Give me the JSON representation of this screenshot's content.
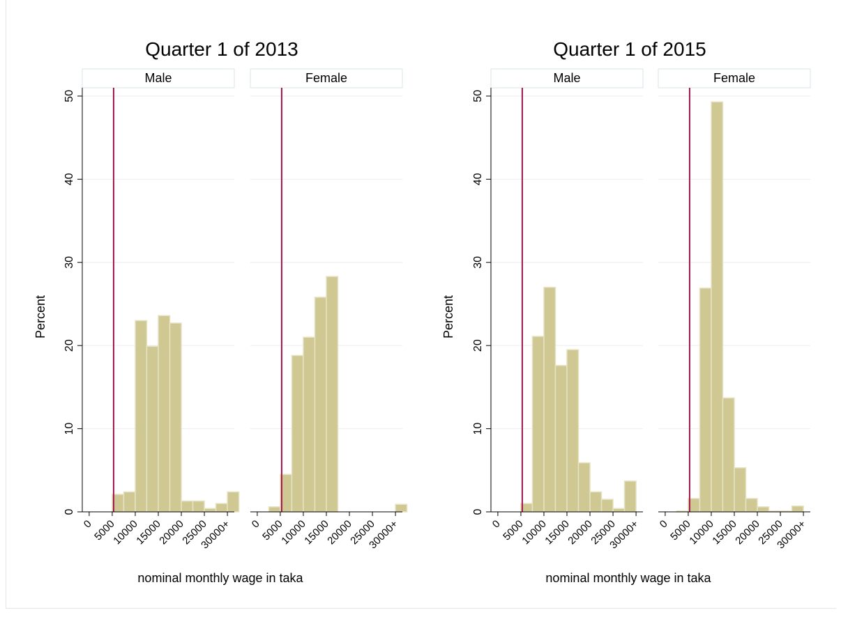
{
  "figure": {
    "panels": [
      {
        "title": "Quarter 1 of 2013",
        "xlabel": "nominal monthly wage in taka",
        "ylabel": "Percent",
        "facets": [
          {
            "label": "Male"
          },
          {
            "label": "Female"
          }
        ]
      },
      {
        "title": "Quarter 1 of 2015",
        "xlabel": "nominal monthly wage in taka",
        "ylabel": "Percent",
        "facets": [
          {
            "label": "Male"
          },
          {
            "label": "Female"
          }
        ]
      }
    ]
  },
  "chart_data": [
    {
      "type": "bar",
      "title": "Quarter 1 of 2013",
      "subtitle": "Male",
      "xlabel": "nominal monthly wage in taka",
      "ylabel": "Percent",
      "x_tick_labels": [
        "0",
        "5000",
        "10000",
        "15000",
        "20000",
        "25000",
        "30000+"
      ],
      "x_tick_values": [
        0,
        5000,
        10000,
        15000,
        20000,
        25000,
        30000
      ],
      "y_ticks": [
        0,
        10,
        20,
        30,
        40,
        50
      ],
      "ylim": [
        0,
        51
      ],
      "xlim": [
        -1500,
        31500
      ],
      "bin_width": 2500,
      "bin_starts": [
        0,
        2500,
        5000,
        7500,
        10000,
        12500,
        15000,
        17500,
        20000,
        22500,
        25000,
        27500,
        30000
      ],
      "values": [
        0,
        0,
        2.1,
        2.4,
        23.0,
        19.9,
        23.6,
        22.7,
        1.3,
        1.3,
        0.4,
        1.0,
        2.4
      ],
      "reference_line_x": 5300,
      "bar_color": "#cfc893",
      "reference_line_color": "#a3144a",
      "grid": true
    },
    {
      "type": "bar",
      "title": "Quarter 1 of 2013",
      "subtitle": "Female",
      "xlabel": "nominal monthly wage in taka",
      "ylabel": "Percent",
      "x_tick_labels": [
        "0",
        "5000",
        "10000",
        "15000",
        "20000",
        "25000",
        "30000+"
      ],
      "x_tick_values": [
        0,
        5000,
        10000,
        15000,
        20000,
        25000,
        30000
      ],
      "y_ticks": [
        0,
        10,
        20,
        30,
        40,
        50
      ],
      "ylim": [
        0,
        51
      ],
      "xlim": [
        -1500,
        31500
      ],
      "bin_width": 2500,
      "bin_starts": [
        0,
        2500,
        5000,
        7500,
        10000,
        12500,
        15000,
        17500,
        20000,
        22500,
        25000,
        27500,
        30000
      ],
      "values": [
        0,
        0.6,
        4.5,
        18.8,
        21.0,
        25.8,
        28.3,
        0,
        0,
        0,
        0,
        0,
        0.9
      ],
      "reference_line_x": 5300,
      "bar_color": "#cfc893",
      "reference_line_color": "#a3144a",
      "grid": true
    },
    {
      "type": "bar",
      "title": "Quarter 1 of 2015",
      "subtitle": "Male",
      "xlabel": "nominal monthly wage in taka",
      "ylabel": "Percent",
      "x_tick_labels": [
        "0",
        "5000",
        "10000",
        "15000",
        "20000",
        "25000",
        "30000+"
      ],
      "x_tick_values": [
        0,
        5000,
        10000,
        15000,
        20000,
        25000,
        30000
      ],
      "y_ticks": [
        0,
        10,
        20,
        30,
        40,
        50
      ],
      "ylim": [
        0,
        51
      ],
      "xlim": [
        -1500,
        31500
      ],
      "bin_width": 2500,
      "bin_starts": [
        0,
        2500,
        5000,
        7500,
        10000,
        12500,
        15000,
        17500,
        20000,
        22500,
        25000,
        27500,
        30000
      ],
      "values": [
        0,
        0,
        1.0,
        21.1,
        27.0,
        17.6,
        19.5,
        5.9,
        2.4,
        1.5,
        0.4,
        3.7,
        0
      ],
      "reference_line_x": 5300,
      "bar_color": "#cfc893",
      "reference_line_color": "#a3144a",
      "grid": true
    },
    {
      "type": "bar",
      "title": "Quarter 1 of 2015",
      "subtitle": "Female",
      "xlabel": "nominal monthly wage in taka",
      "ylabel": "Percent",
      "x_tick_labels": [
        "0",
        "5000",
        "10000",
        "15000",
        "20000",
        "25000",
        "30000+"
      ],
      "x_tick_values": [
        0,
        5000,
        10000,
        15000,
        20000,
        25000,
        30000
      ],
      "y_ticks": [
        0,
        10,
        20,
        30,
        40,
        50
      ],
      "ylim": [
        0,
        51
      ],
      "xlim": [
        -1500,
        31500
      ],
      "bin_width": 2500,
      "bin_starts": [
        0,
        2500,
        5000,
        7500,
        10000,
        12500,
        15000,
        17500,
        20000,
        22500,
        25000,
        27500,
        30000
      ],
      "values": [
        0,
        0.1,
        1.6,
        26.9,
        49.3,
        13.7,
        5.3,
        1.6,
        0.6,
        0.1,
        0.1,
        0.7,
        0
      ],
      "reference_line_x": 5300,
      "bar_color": "#cfc893",
      "reference_line_color": "#a3144a",
      "grid": true
    }
  ]
}
